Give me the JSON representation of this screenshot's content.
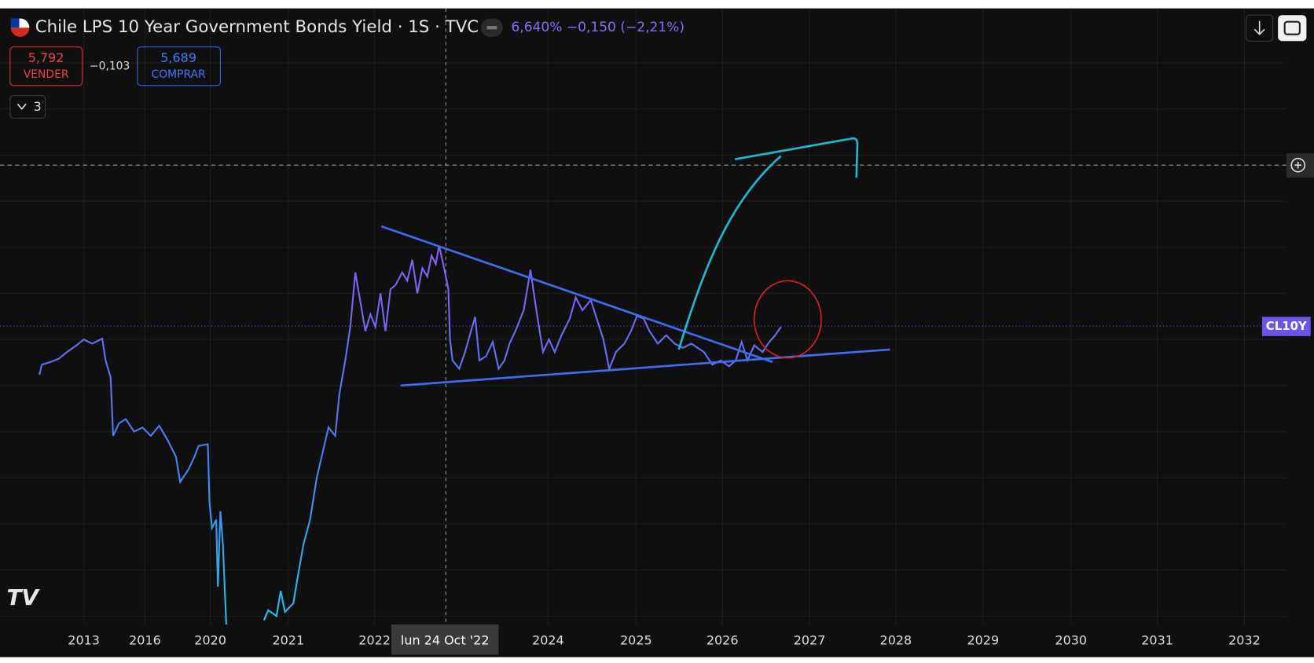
{
  "header": {
    "title": "Chile LPS 10 Year Government Bonds Yield · 1S · TVC",
    "price": "6,640%",
    "change": "−0,150 (−2,21%)"
  },
  "trade": {
    "sell_price": "5,792",
    "sell_label": "VENDER",
    "spread": "−0,103",
    "buy_price": "5,689",
    "buy_label": "COMPRAR",
    "indicators": "3"
  },
  "x_axis": {
    "labels": [
      "2013",
      "2016",
      "2020",
      "2021",
      "2022",
      "2024",
      "2025",
      "2026",
      "2027",
      "2028",
      "2029",
      "2030",
      "2031",
      "2032"
    ],
    "crosshair_label": "lun 24 Oct '22"
  },
  "price_tag": "CL10Y"
}
